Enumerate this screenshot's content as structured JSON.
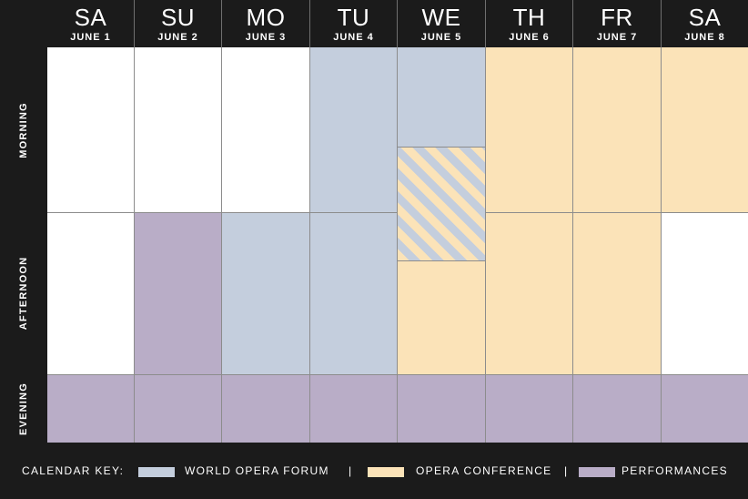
{
  "days": [
    {
      "dow": "SA",
      "date": "JUNE 1"
    },
    {
      "dow": "SU",
      "date": "JUNE 2"
    },
    {
      "dow": "MO",
      "date": "JUNE 3"
    },
    {
      "dow": "TU",
      "date": "JUNE 4"
    },
    {
      "dow": "WE",
      "date": "JUNE 5"
    },
    {
      "dow": "TH",
      "date": "JUNE 6"
    },
    {
      "dow": "FR",
      "date": "JUNE 7"
    },
    {
      "dow": "SA",
      "date": "JUNE 8"
    }
  ],
  "rows": {
    "morning": "MORNING",
    "afternoon": "AFTERNOON",
    "evening": "EVENING"
  },
  "legend": {
    "title": "CALENDAR KEY:",
    "separator": "|",
    "forum": "WORLD OPERA FORUM",
    "conference": "OPERA CONFERENCE",
    "performances": "PERFORMANCES"
  },
  "colors": {
    "forum": "#c4cedd",
    "conference": "#fbe3b8",
    "performances": "#b9adc7",
    "free": "#ffffff",
    "background": "#1b1b1b"
  }
}
